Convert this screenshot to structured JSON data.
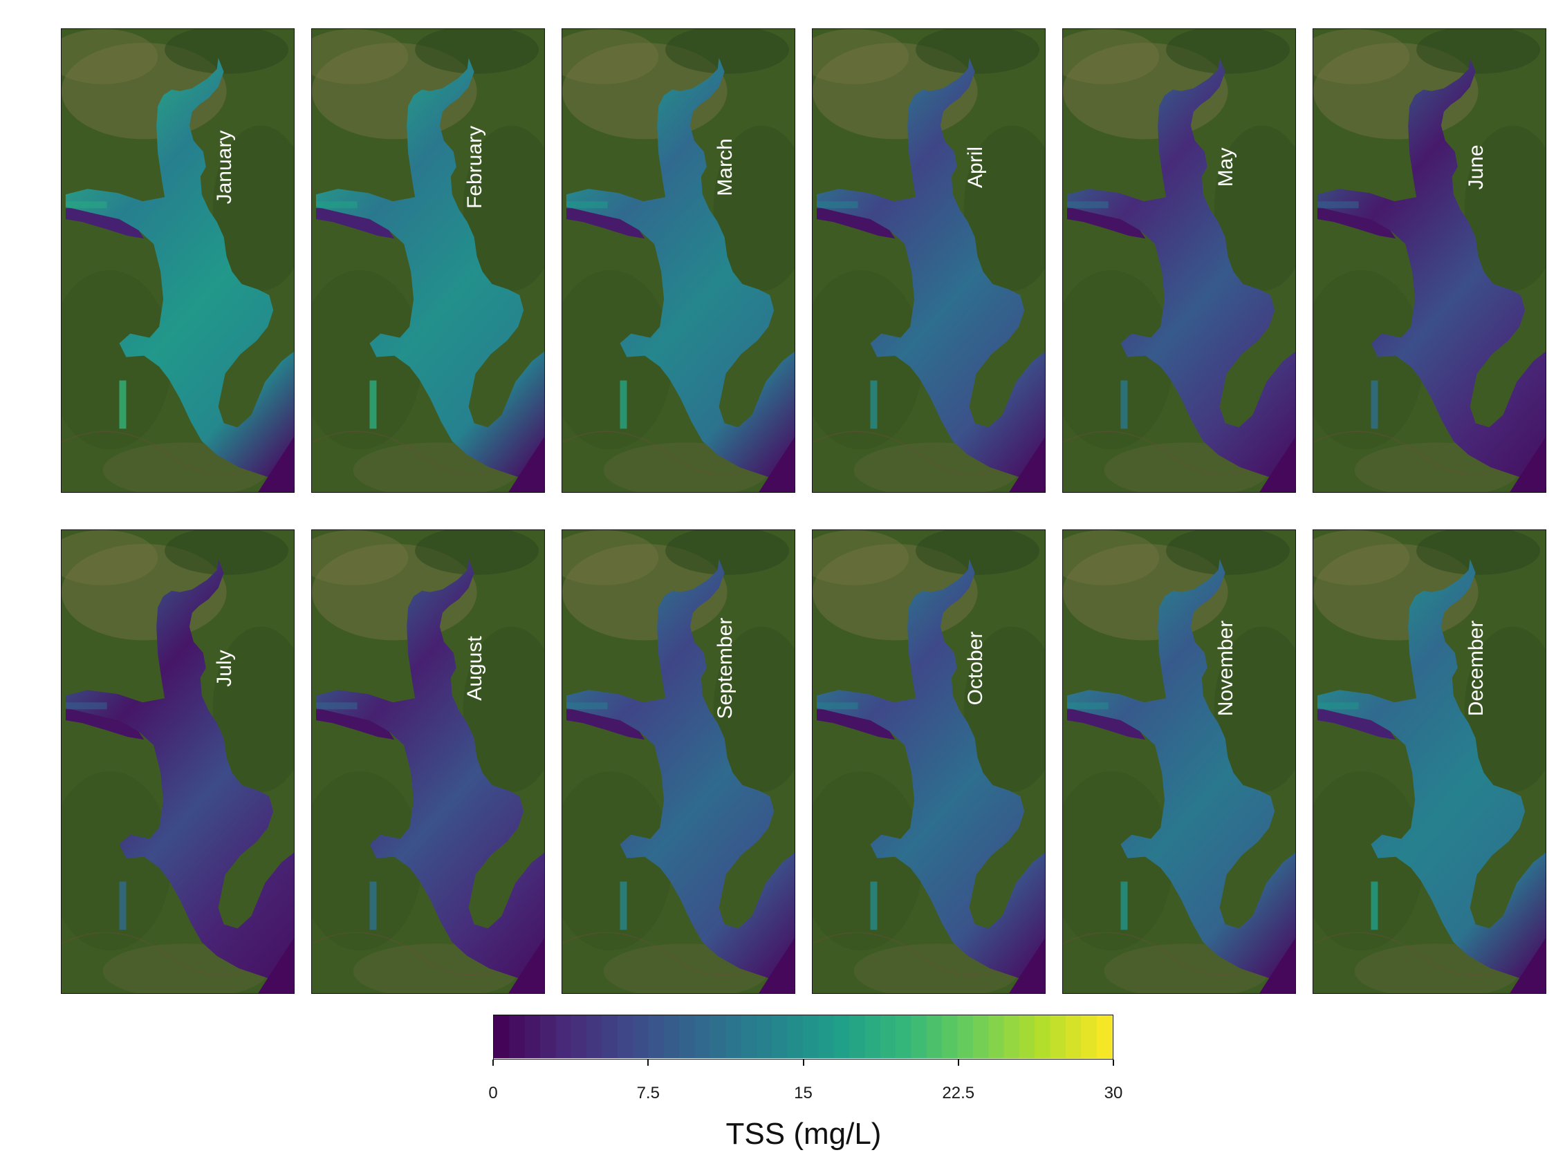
{
  "panels": [
    {
      "month": "January",
      "level": 0.55,
      "bias": 0.0
    },
    {
      "month": "February",
      "level": 0.52,
      "bias": 0.0
    },
    {
      "month": "March",
      "level": 0.48,
      "bias": -0.02
    },
    {
      "month": "April",
      "level": 0.38,
      "bias": -0.05
    },
    {
      "month": "May",
      "level": 0.3,
      "bias": -0.06
    },
    {
      "month": "June",
      "level": 0.26,
      "bias": -0.07
    },
    {
      "month": "July",
      "level": 0.25,
      "bias": -0.07
    },
    {
      "month": "August",
      "level": 0.27,
      "bias": -0.06
    },
    {
      "month": "September",
      "level": 0.36,
      "bias": -0.03
    },
    {
      "month": "October",
      "level": 0.38,
      "bias": -0.04
    },
    {
      "month": "November",
      "level": 0.42,
      "bias": -0.02
    },
    {
      "month": "December",
      "level": 0.46,
      "bias": 0.0
    }
  ],
  "legend": {
    "title": "TSS (mg/L)",
    "min": 0,
    "max": 30,
    "ticks": [
      "0",
      "7.5",
      "15",
      "22.5",
      "30"
    ],
    "tick_values": [
      0,
      7.5,
      15,
      22.5,
      30
    ],
    "colormap": "viridis"
  }
}
